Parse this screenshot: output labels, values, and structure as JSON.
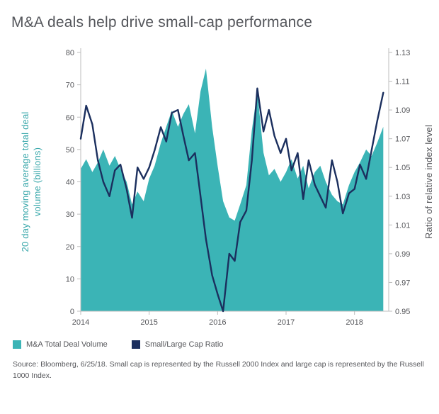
{
  "title": "M&A deals help drive small-cap performance",
  "legend": [
    {
      "label": "M&A Total Deal Volume",
      "color": "#3bb4b6"
    },
    {
      "label": "Small/Large Cap Ratio",
      "color": "#1b2f5e"
    }
  ],
  "source": "Source: Bloomberg, 6/25/18. Small cap is represented by the Russell 2000 Index and large cap is represented by the Russell 1000 Index.",
  "colors": {
    "area": "#3bb4b6",
    "line": "#1b2f5e",
    "axis": "#bdbdbd",
    "tick_text": "#55565a",
    "ylabel_left": "#3aa8ab",
    "ylabel_right": "#55565a"
  },
  "chart_data": {
    "type": "area+line",
    "title": "M&A deals help drive small-cap performance",
    "xlabel": "",
    "ylabel_left_lines": [
      "20 day moving average total deal",
      "volume (billions)"
    ],
    "ylabel_right": "Ratio of relative index level",
    "xlim": [
      2014.0,
      2018.5
    ],
    "ylim_left": [
      0,
      80
    ],
    "ylim_right": [
      0.95,
      1.13
    ],
    "x_ticks": [
      2014,
      2015,
      2016,
      2017,
      2018
    ],
    "left_ticks": [
      0,
      10,
      20,
      30,
      40,
      50,
      60,
      70,
      80
    ],
    "right_ticks": [
      0.95,
      0.97,
      0.99,
      1.01,
      1.03,
      1.05,
      1.07,
      1.09,
      1.11,
      1.13
    ],
    "grid": false,
    "legend_position": "bottom-left",
    "x": [
      2014.0,
      2014.08,
      2014.17,
      2014.25,
      2014.33,
      2014.42,
      2014.5,
      2014.58,
      2014.67,
      2014.75,
      2014.83,
      2014.92,
      2015.0,
      2015.08,
      2015.17,
      2015.25,
      2015.33,
      2015.42,
      2015.5,
      2015.58,
      2015.67,
      2015.75,
      2015.83,
      2015.92,
      2016.0,
      2016.08,
      2016.17,
      2016.25,
      2016.33,
      2016.42,
      2016.5,
      2016.58,
      2016.67,
      2016.75,
      2016.83,
      2016.92,
      2017.0,
      2017.08,
      2017.17,
      2017.25,
      2017.33,
      2017.42,
      2017.5,
      2017.58,
      2017.67,
      2017.75,
      2017.83,
      2017.92,
      2018.0,
      2018.08,
      2018.17,
      2018.25,
      2018.33,
      2018.42
    ],
    "series": [
      {
        "name": "M&A Total Deal Volume",
        "axis": "left",
        "style": "area",
        "values": [
          44,
          47,
          43,
          46,
          50,
          45,
          48,
          44,
          40,
          33,
          37,
          34,
          41,
          45,
          52,
          57,
          62,
          57,
          61,
          64,
          55,
          68,
          75,
          57,
          45,
          34,
          29,
          28,
          33,
          39,
          56,
          68,
          49,
          42,
          44,
          40,
          43,
          47,
          41,
          45,
          38,
          43,
          45,
          40,
          36,
          34,
          33,
          39,
          43,
          46,
          50,
          48,
          52,
          57
        ]
      },
      {
        "name": "Small/Large Cap Ratio",
        "axis": "right",
        "style": "line",
        "values": [
          1.07,
          1.093,
          1.08,
          1.055,
          1.04,
          1.03,
          1.048,
          1.052,
          1.035,
          1.015,
          1.05,
          1.042,
          1.05,
          1.062,
          1.078,
          1.068,
          1.088,
          1.09,
          1.072,
          1.055,
          1.06,
          1.03,
          1.0,
          0.975,
          0.962,
          0.95,
          0.99,
          0.985,
          1.012,
          1.02,
          1.055,
          1.105,
          1.075,
          1.09,
          1.072,
          1.06,
          1.07,
          1.048,
          1.06,
          1.028,
          1.055,
          1.038,
          1.03,
          1.022,
          1.055,
          1.04,
          1.018,
          1.032,
          1.035,
          1.052,
          1.042,
          1.062,
          1.082,
          1.102
        ]
      }
    ]
  }
}
